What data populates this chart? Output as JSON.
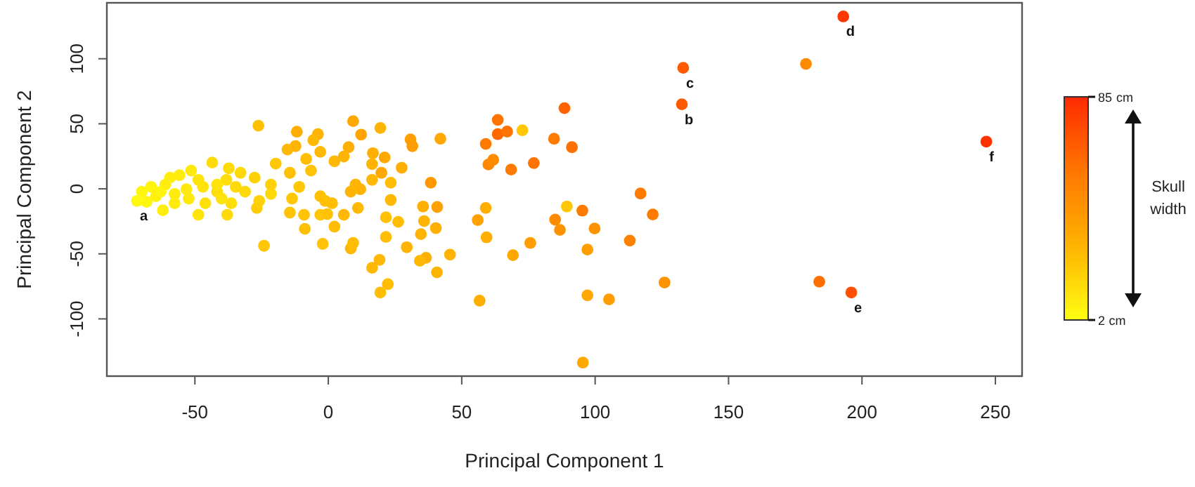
{
  "chart_data": {
    "type": "scatter",
    "xlabel": "Principal Component 1",
    "ylabel": "Principal Component 2",
    "clabel": "Skull width",
    "clim": [
      2,
      85
    ],
    "cticks": [
      {
        "value": 2,
        "label": "2 cm"
      },
      {
        "value": 85,
        "label": "85 cm"
      }
    ],
    "xlim": [
      -83,
      260
    ],
    "ylim": [
      -144,
      143
    ],
    "xticks": [
      -50,
      0,
      50,
      100,
      150,
      200,
      250
    ],
    "yticks": [
      -100,
      -50,
      0,
      50,
      100
    ],
    "x": [
      193,
      179,
      133,
      132.5,
      246.6,
      121.6,
      126,
      184,
      196,
      88.5,
      63.5,
      63.5,
      67,
      72.7,
      84.6,
      91.3,
      59,
      60,
      61.8,
      68.5,
      77,
      117,
      89.4,
      95.2,
      85,
      86.8,
      99.8,
      113,
      97.1,
      75.7,
      69.2,
      97.1,
      105.2,
      95.4,
      56.7,
      59,
      56,
      59.3,
      42,
      38.4,
      40.8,
      35.5,
      35.9,
      40.3,
      34.7,
      45.6,
      40.7,
      36.6,
      34.3,
      29.4,
      19.2,
      16.4,
      22.3,
      19.5,
      21.6,
      21.6,
      26.2,
      23.4,
      23.4,
      30.8,
      31.5,
      19.5,
      16.7,
      21.1,
      16.4,
      27.5,
      19.9,
      16.4,
      -26.2,
      -11.8,
      -3.9,
      -5.6,
      -12.3,
      9.3,
      12.3,
      7.6,
      -3,
      -8.3,
      -15.3,
      -14.4,
      -19.7,
      -6.5,
      2.3,
      5.8,
      10.2,
      8.4,
      12,
      -1.2,
      1.4,
      -3,
      -10.9,
      -13.6,
      -14.4,
      -9.1,
      -3,
      -0.4,
      5.8,
      11.1,
      -8.8,
      2.3,
      -2.1,
      8.4,
      9.3,
      -24.1,
      -21.5,
      -25.9,
      -26.8,
      -21.5,
      -27.6,
      -32.9,
      -37.3,
      -43.5,
      -38.2,
      -41.7,
      -36.4,
      -37.9,
      -48.7,
      -46.1,
      -51.4,
      -55.8,
      -61.1,
      -66.4,
      -69.9,
      -71.7,
      -68.1,
      -62,
      -57.6,
      -53.2,
      -47,
      -41.7,
      -34.7,
      -31.2,
      -40,
      -52.3,
      -57.6,
      -64.6,
      -48.7,
      -59.3,
      -62.8
    ],
    "values": [
      132.5,
      96,
      93,
      65,
      36.3,
      -19.7,
      -72,
      -71.4,
      -79.7,
      62,
      53,
      42,
      44,
      45,
      38.5,
      32,
      34.5,
      18.7,
      22.3,
      14.8,
      19.8,
      -3.6,
      -13.6,
      -16.8,
      -23.7,
      -31.6,
      -30.5,
      -39.8,
      -46.7,
      -41.6,
      -51,
      -81.9,
      -85,
      -133.6,
      -86,
      -14.7,
      -24,
      -37.3,
      38.5,
      4.7,
      -14,
      -13.6,
      -24.8,
      -30.2,
      -34.8,
      -50.6,
      -64.2,
      -53,
      -55.3,
      -44.9,
      -54.6,
      -60.7,
      -73.3,
      -79.7,
      -37,
      -21.9,
      -25.4,
      -8.6,
      4.7,
      38,
      32.8,
      46.8,
      27.4,
      24.1,
      19,
      16.2,
      12.3,
      6.9,
      48.5,
      43.9,
      42,
      37.4,
      32.8,
      52,
      41.7,
      32,
      28.4,
      23,
      30.2,
      12.3,
      19.4,
      14,
      21.2,
      24.8,
      3.2,
      -2.2,
      -0.3,
      -9.3,
      -11.1,
      -5.7,
      1.5,
      -7.5,
      -18.3,
      -20,
      -20,
      -19.4,
      -20,
      -14.7,
      -30.8,
      -29.1,
      -42.3,
      -45.9,
      -41.6,
      -43.8,
      -3.9,
      -9.3,
      -14.7,
      3.2,
      8.6,
      12.3,
      15.8,
      20.2,
      6.9,
      -2.2,
      -11.1,
      -20,
      -20,
      -11.1,
      14,
      10.5,
      3.2,
      1.5,
      -2.2,
      -9.3,
      -10,
      -16.5,
      -3.9,
      -0.3,
      1.5,
      3.2,
      1.5,
      -2.2,
      -7.5,
      -7.5,
      -11.1,
      -5.7,
      6.9,
      8.6,
      -2.2
    ],
    "cvalues": [
      80,
      48,
      68,
      68,
      82,
      55,
      45,
      60,
      72,
      65,
      58,
      62,
      58,
      22,
      55,
      60,
      55,
      50,
      48,
      55,
      58,
      55,
      22,
      55,
      48,
      45,
      45,
      52,
      40,
      40,
      35,
      35,
      40,
      35,
      32,
      32,
      38,
      32,
      35,
      42,
      38,
      32,
      30,
      32,
      30,
      30,
      30,
      32,
      28,
      30,
      28,
      28,
      26,
      26,
      26,
      25,
      26,
      28,
      26,
      40,
      40,
      30,
      32,
      35,
      30,
      32,
      35,
      28,
      25,
      32,
      30,
      28,
      30,
      35,
      36,
      32,
      28,
      26,
      28,
      25,
      22,
      24,
      28,
      30,
      30,
      30,
      30,
      25,
      26,
      25,
      22,
      22,
      24,
      24,
      22,
      24,
      28,
      28,
      25,
      26,
      24,
      28,
      26,
      22,
      16,
      18,
      20,
      18,
      18,
      16,
      15,
      15,
      14,
      14,
      14,
      15,
      12,
      13,
      10,
      9,
      8,
      6,
      5,
      4,
      5,
      8,
      9,
      10,
      12,
      12,
      15,
      16,
      12,
      10,
      9,
      7,
      12,
      8,
      6
    ],
    "annotations": [
      {
        "text": "a",
        "x": -71.7,
        "y": -9.3
      },
      {
        "text": "b",
        "x": 132.5,
        "y": 65
      },
      {
        "text": "c",
        "x": 133,
        "y": 93
      },
      {
        "text": "d",
        "x": 193,
        "y": 132.5
      },
      {
        "text": "e",
        "x": 196,
        "y": -79.7
      },
      {
        "text": "f",
        "x": 246.6,
        "y": 36.3
      }
    ]
  }
}
